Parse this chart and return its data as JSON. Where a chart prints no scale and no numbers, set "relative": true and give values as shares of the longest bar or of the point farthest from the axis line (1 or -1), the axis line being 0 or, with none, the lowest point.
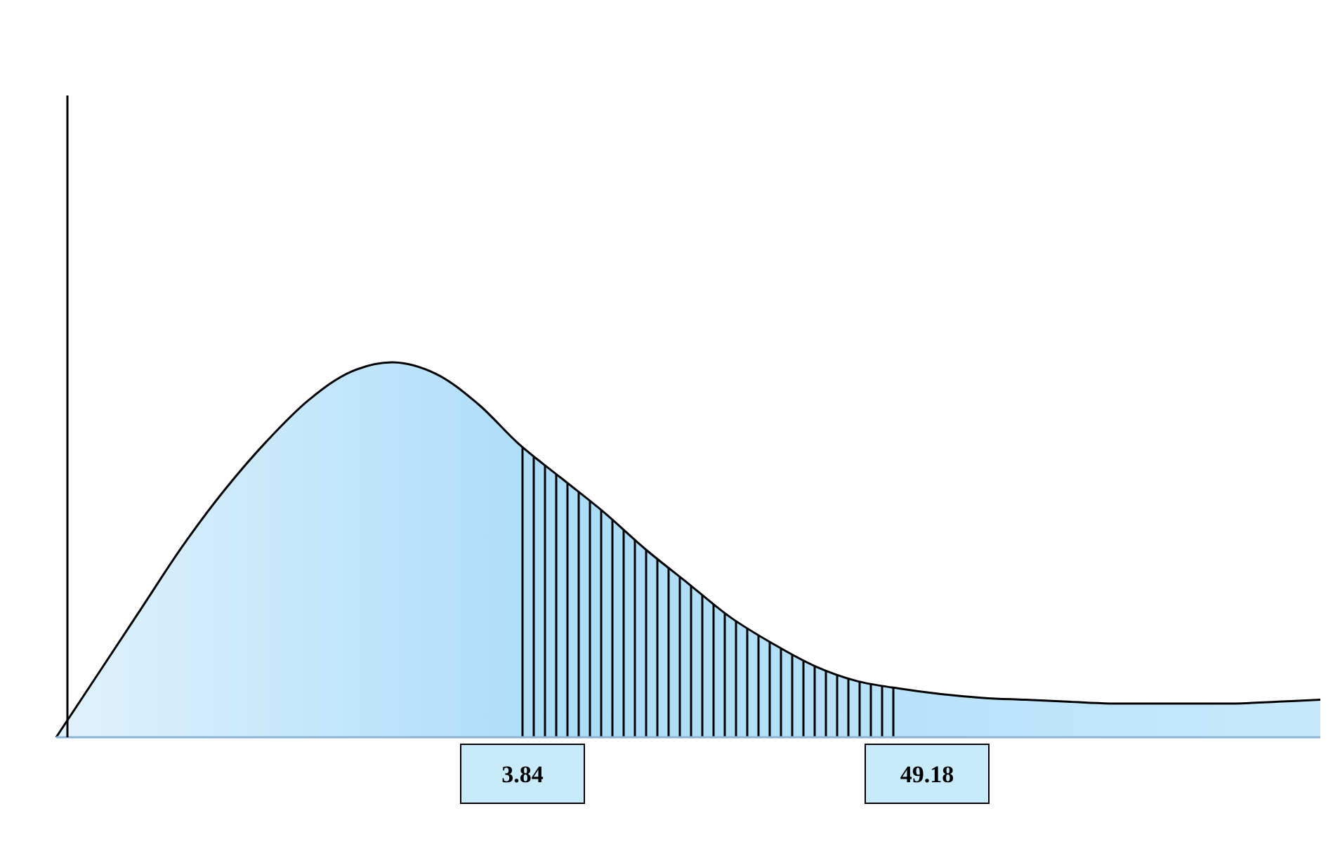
{
  "chart_data": {
    "type": "area",
    "relative": true,
    "categories": [
      null,
      null,
      null,
      null,
      null,
      null,
      null,
      null,
      null,
      null,
      null,
      null,
      null,
      null,
      null,
      null,
      null,
      null,
      null,
      null,
      null,
      null,
      null,
      null,
      null,
      null,
      null,
      null,
      null,
      null,
      null
    ],
    "series": [
      {
        "color": "#aadcf8",
        "values": [
          0,
          0.17,
          0.34,
          0.51,
          0.66,
          0.79,
          0.9,
          0.975,
          1,
          0.97,
          0.89,
          0.78,
          0.69,
          0.6,
          0.5,
          0.41,
          0.32,
          0.25,
          0.19,
          0.15,
          0.13,
          0.115,
          0.105,
          0.1,
          0.095,
          0.09,
          0.09,
          0.09,
          0.09,
          0.095,
          0.1
        ]
      },
      {
        "type": "area",
        "color": "#000000",
        "values": [
          null,
          null,
          null,
          null,
          null,
          null,
          null,
          null,
          null,
          null,
          null,
          0.78,
          0.69,
          0.6,
          0.5,
          0.41,
          0.32,
          0.25,
          0.19,
          0.15,
          0.13,
          null,
          null,
          null,
          null,
          null,
          null,
          null,
          null,
          null,
          null
        ]
      }
    ],
    "annotations": [
      "3.84",
      "49.18"
    ]
  }
}
